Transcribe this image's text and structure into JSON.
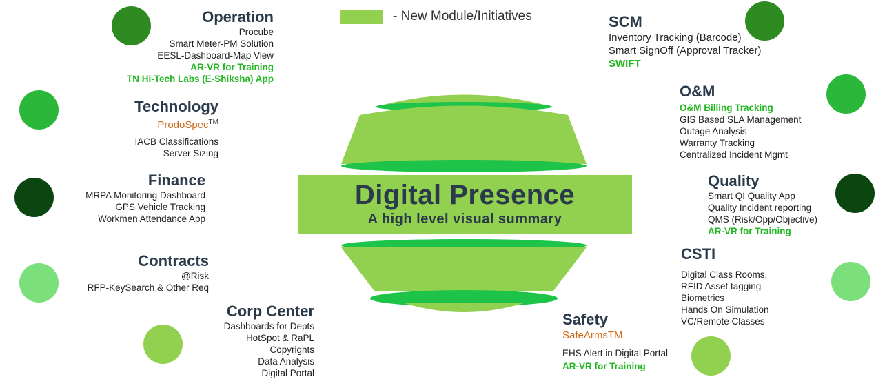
{
  "legend": {
    "text": "- New Module/Initiatives",
    "swatch_color": "#92d050"
  },
  "center": {
    "title": "Digital Presence",
    "subtitle": "A high level visual summary"
  },
  "colors": {
    "new_item": "#22b822",
    "title": "#2a3a4a",
    "product": "#cc6a1a"
  },
  "modules": {
    "operation": {
      "title": "Operation",
      "items": [
        "Procube",
        "Smart Meter-PM Solution",
        "EESL-Dashboard-Map View"
      ],
      "new_items": [
        "AR-VR  for Training",
        "TN Hi-Tech Labs (E-Shiksha) App"
      ],
      "circle_color": "#2e8b22"
    },
    "technology": {
      "title": "Technology",
      "product": "ProdoSpec",
      "product_mark": "TM",
      "items": [
        "IACB  Classifications",
        "Server Sizing"
      ],
      "circle_color": "#2bb83a"
    },
    "finance": {
      "title": "Finance",
      "items": [
        "MRPA Monitoring Dashboard",
        "GPS Vehicle Tracking",
        "Workmen Attendance App"
      ],
      "circle_color": "#0b4510"
    },
    "contracts": {
      "title": "Contracts",
      "items": [
        "@Risk",
        "RFP-KeySearch & Other Req"
      ],
      "circle_color": "#7be07b"
    },
    "corp_center": {
      "title": "Corp Center",
      "items": [
        "Dashboards for Depts",
        "HotSpot & RaPL",
        "Copyrights",
        "Data Analysis",
        "Digital Portal"
      ],
      "circle_color": "#92d050"
    },
    "scm": {
      "title": "SCM",
      "items": [
        "Inventory  Tracking (Barcode)",
        "Smart SignOff (Approval Tracker)"
      ],
      "new_items": [
        "SWIFT"
      ],
      "circle_color": "#2e8b22"
    },
    "om": {
      "title": "O&M",
      "new_items": [
        "O&M Billing Tracking"
      ],
      "items": [
        "GIS Based SLA Management",
        "Outage Analysis",
        "Warranty Tracking",
        "Centralized Incident Mgmt"
      ],
      "circle_color": "#2bb83a"
    },
    "quality": {
      "title": "Quality",
      "items": [
        "Smart QI Quality App",
        "Quality Incident reporting",
        "QMS  (Risk/Opp/Objective)"
      ],
      "new_items": [
        "AR-VR  for Training"
      ],
      "circle_color": "#0b4510"
    },
    "csti": {
      "title": "CSTI",
      "items": [
        "Digital Class Rooms,",
        "RFID Asset tagging",
        "Biometrics",
        "Hands On Simulation",
        "VC/Remote Classes"
      ],
      "circle_color": "#7be07b"
    },
    "safety": {
      "title": "Safety",
      "product": "SafeArmsTM",
      "items": [
        "EHS  Alert in Digital Portal"
      ],
      "new_items": [
        "AR-VR  for Training"
      ],
      "circle_color": "#92d050"
    }
  }
}
